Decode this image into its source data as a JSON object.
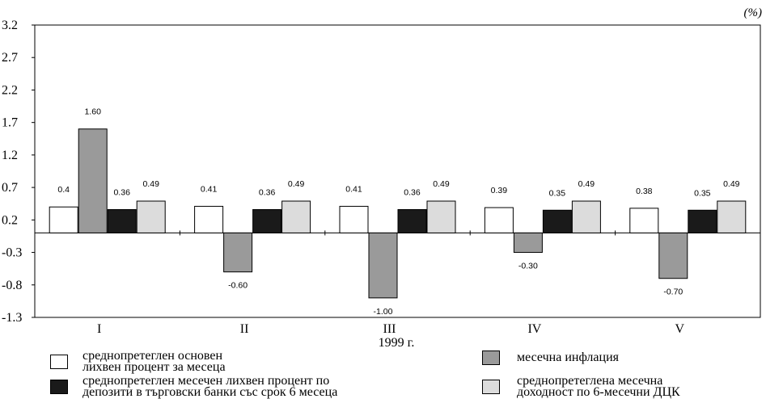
{
  "chart_data": {
    "type": "bar",
    "unit": "(%)",
    "xlabel": "1999 г.",
    "categories": [
      "I",
      "II",
      "III",
      "IV",
      "V"
    ],
    "ylim": [
      -1.3,
      3.2
    ],
    "yticks": [
      "3.2",
      "2.7",
      "2.2",
      "1.7",
      "1.2",
      "0.7",
      "0.2",
      "-0.3",
      "-0.8",
      "-1.3"
    ],
    "series": [
      {
        "name": "среднопретеглен основен\nлихвен процент за месеца",
        "color": "#ffffff",
        "values": [
          0.4,
          0.41,
          0.41,
          0.39,
          0.38
        ],
        "labels": [
          "0.4",
          "0.41",
          "0.41",
          "0.39",
          "0.38"
        ]
      },
      {
        "name": "месечна инфлация",
        "color": "#9a9a9a",
        "values": [
          1.6,
          -0.6,
          -1.0,
          -0.3,
          -0.7
        ],
        "labels": [
          "1.60",
          "-0.60",
          "-1.00",
          "-0.30",
          "-0.70"
        ]
      },
      {
        "name": "среднопретеглен месечен лихвен процент по\nдепозити в търговски банки със срок 6 месеца",
        "color": "#1a1a1a",
        "values": [
          0.36,
          0.36,
          0.36,
          0.35,
          0.35
        ],
        "labels": [
          "0.36",
          "0.36",
          "0.36",
          "0.35",
          "0.35"
        ]
      },
      {
        "name": "среднопретеглена месечна\nдоходност по 6-месечни ДЦК",
        "color": "#dcdcdc",
        "values": [
          0.49,
          0.49,
          0.49,
          0.49,
          0.49
        ],
        "labels": [
          "0.49",
          "0.49",
          "0.49",
          "0.49",
          "0.49"
        ]
      }
    ],
    "legend_position": "bottom",
    "grid": false
  }
}
